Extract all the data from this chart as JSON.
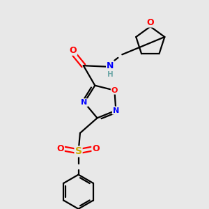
{
  "bg_color": "#e8e8e8",
  "atom_colors": {
    "C": "#000000",
    "N": "#0000ff",
    "O": "#ff0000",
    "S": "#ccaa00",
    "H": "#6fa8a8"
  },
  "bond_color": "#000000",
  "bond_width": 1.6,
  "figsize": [
    3.0,
    3.0
  ],
  "dpi": 100,
  "xlim": [
    0,
    10
  ],
  "ylim": [
    0,
    10
  ]
}
